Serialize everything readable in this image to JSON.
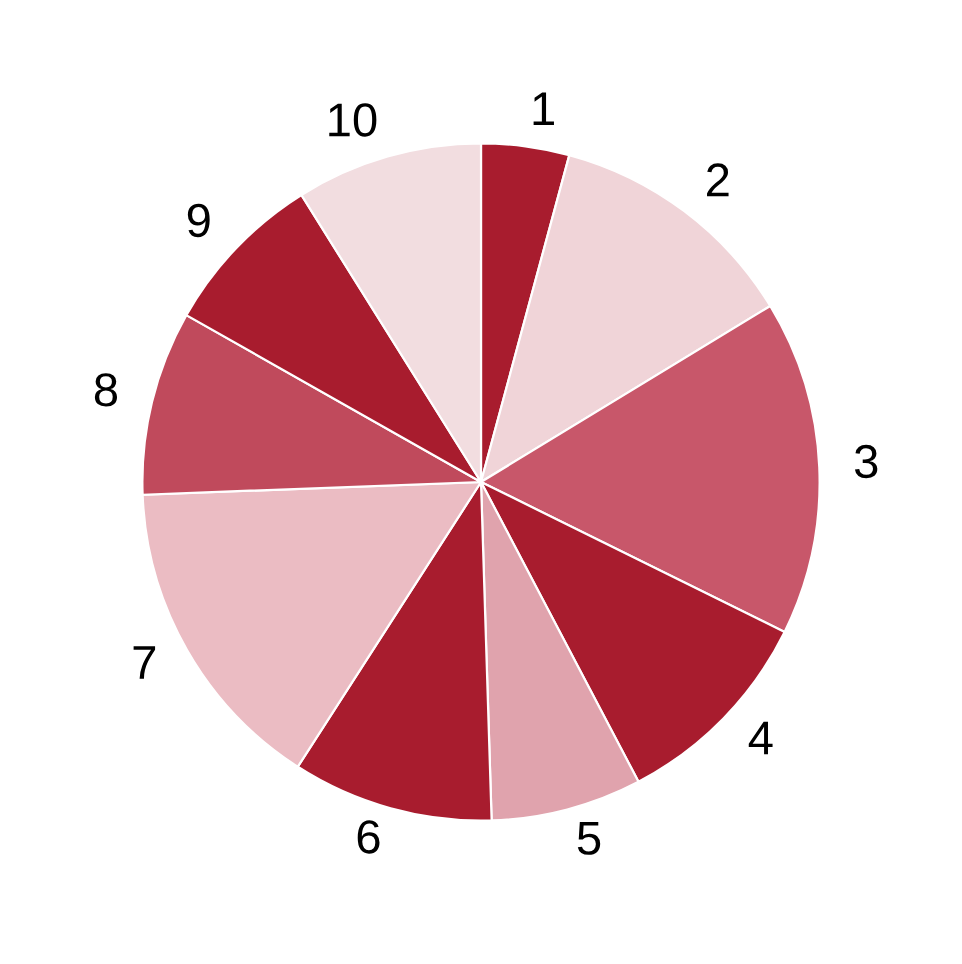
{
  "chart_data": {
    "type": "pie",
    "categories": [
      "1",
      "2",
      "3",
      "4",
      "5",
      "6",
      "7",
      "8",
      "9",
      "10"
    ],
    "values": [
      4.2,
      12.1,
      16.0,
      10.0,
      7.2,
      9.6,
      15.3,
      8.8,
      7.9,
      8.9
    ],
    "colors": [
      "#a81c2e",
      "#f0d4d8",
      "#c8576a",
      "#a81c2e",
      "#e0a3ad",
      "#a81c2e",
      "#ebbcc3",
      "#c04a5c",
      "#a81c2e",
      "#f2dde0"
    ],
    "legend": false
  }
}
